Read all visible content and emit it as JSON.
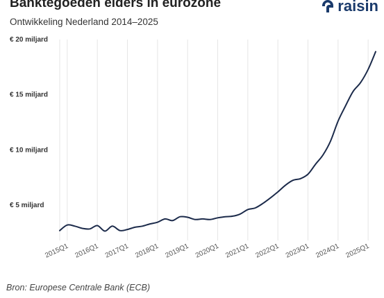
{
  "header": {
    "title": "Banktegoeden elders in eurozone",
    "subtitle": "Ontwikkeling Nederland 2014–2025",
    "logo_text": "raisin",
    "logo_icon": "raisin-logo-icon"
  },
  "footer": {
    "source": "Bron: Europese Centrale Bank (ECB)"
  },
  "colors": {
    "line": "#1b2a4a",
    "brand": "#1a3a6b",
    "grid": "#e6e6e6"
  },
  "chart_data": {
    "type": "line",
    "title": "Banktegoeden elders in eurozone",
    "subtitle": "Ontwikkeling Nederland 2014–2025",
    "xlabel": "",
    "ylabel": "",
    "y_unit": "miljard €",
    "ylim": [
      1.8,
      20
    ],
    "y_ticks": [
      5,
      10,
      15,
      20
    ],
    "y_tick_labels": [
      "€ 5 miljard",
      "€ 10 miljard",
      "€ 15 miljard",
      "€ 20 miljard"
    ],
    "x_ticks": [
      "2015Q1",
      "2016Q1",
      "2017Q1",
      "2018Q1",
      "2019Q1",
      "2020Q1",
      "2021Q1",
      "2022Q1",
      "2023Q1",
      "2024Q1",
      "2025Q1"
    ],
    "grid": "vertical",
    "series": [
      {
        "values": [
          [
            "2014Q4",
            2.7
          ],
          [
            "2015Q1",
            3.2
          ],
          [
            "2015Q2",
            3.1
          ],
          [
            "2015Q3",
            2.9
          ],
          [
            "2015Q4",
            2.85
          ],
          [
            "2016Q1",
            3.15
          ],
          [
            "2016Q2",
            2.65
          ],
          [
            "2016Q3",
            3.1
          ],
          [
            "2016Q4",
            2.7
          ],
          [
            "2017Q1",
            2.8
          ],
          [
            "2017Q2",
            3.0
          ],
          [
            "2017Q3",
            3.1
          ],
          [
            "2017Q4",
            3.3
          ],
          [
            "2018Q1",
            3.45
          ],
          [
            "2018Q2",
            3.75
          ],
          [
            "2018Q3",
            3.6
          ],
          [
            "2018Q4",
            3.95
          ],
          [
            "2019Q1",
            3.9
          ],
          [
            "2019Q2",
            3.7
          ],
          [
            "2019Q3",
            3.75
          ],
          [
            "2019Q4",
            3.7
          ],
          [
            "2020Q1",
            3.85
          ],
          [
            "2020Q2",
            3.95
          ],
          [
            "2020Q3",
            4.0
          ],
          [
            "2020Q4",
            4.2
          ],
          [
            "2021Q1",
            4.6
          ],
          [
            "2021Q2",
            4.75
          ],
          [
            "2021Q3",
            5.15
          ],
          [
            "2021Q4",
            5.65
          ],
          [
            "2022Q1",
            6.2
          ],
          [
            "2022Q2",
            6.8
          ],
          [
            "2022Q3",
            7.25
          ],
          [
            "2022Q4",
            7.4
          ],
          [
            "2023Q1",
            7.8
          ],
          [
            "2023Q2",
            8.7
          ],
          [
            "2023Q3",
            9.55
          ],
          [
            "2023Q4",
            10.8
          ],
          [
            "2024Q1",
            12.6
          ],
          [
            "2024Q2",
            14.0
          ],
          [
            "2024Q3",
            15.3
          ],
          [
            "2024Q4",
            16.1
          ],
          [
            "2025Q1",
            17.3
          ],
          [
            "2025Q2",
            18.9
          ]
        ]
      }
    ]
  }
}
